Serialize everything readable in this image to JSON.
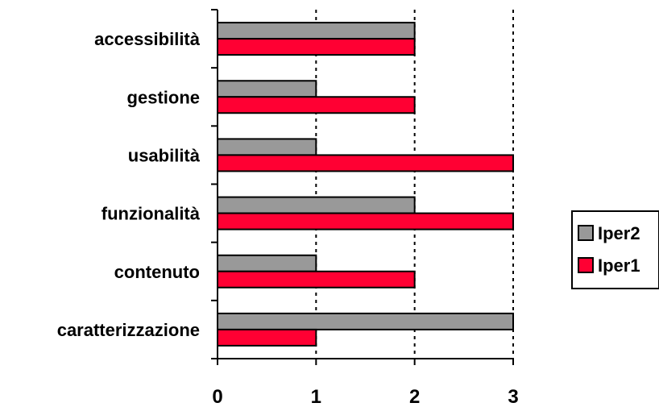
{
  "chart_data": {
    "type": "bar",
    "orientation": "horizontal",
    "categories": [
      "accessibilità",
      "gestione",
      "usabilità",
      "funzionalità",
      "contenuto",
      "caratterizzazione"
    ],
    "series": [
      {
        "name": "Iper2",
        "color": "#999999",
        "values": [
          2,
          1,
          1,
          2,
          1,
          3
        ]
      },
      {
        "name": "Iper1",
        "color": "#ff0033",
        "values": [
          2,
          2,
          3,
          3,
          2,
          1
        ]
      }
    ],
    "xlim": [
      0,
      3
    ],
    "xticks": [
      "0",
      "1",
      "2",
      "3"
    ],
    "grid": "vertical dotted",
    "legend_position": "right",
    "title": "",
    "xlabel": "",
    "ylabel": ""
  }
}
